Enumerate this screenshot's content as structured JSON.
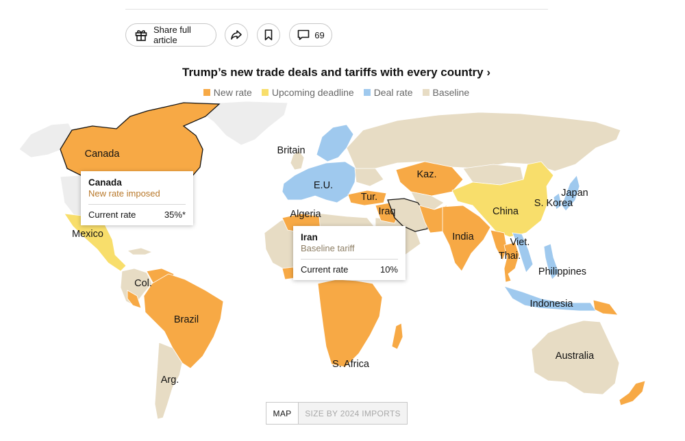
{
  "toolbar": {
    "share_label": "Share full article",
    "comment_count": "69"
  },
  "title": "Trump’s new trade deals and tariffs with every country ›",
  "legend": [
    {
      "label": "New rate",
      "color": "#f7a945"
    },
    {
      "label": "Upcoming deadline",
      "color": "#f8de6b"
    },
    {
      "label": "Deal rate",
      "color": "#9fc9ee"
    },
    {
      "label": "Baseline",
      "color": "#e7dcc4"
    }
  ],
  "colors": {
    "new_rate": "#f7a945",
    "upcoming": "#f8de6b",
    "deal": "#9fc9ee",
    "baseline": "#e7dcc4",
    "no_data": "#ededed",
    "new_rate_text": "#b8782a",
    "baseline_text": "#8c7d63"
  },
  "map_labels": {
    "canada": "Canada",
    "mexico": "Mexico",
    "colombia": "Col.",
    "brazil": "Brazil",
    "argentina": "Arg.",
    "britain": "Britain",
    "eu": "E.U.",
    "algeria": "Algeria",
    "turkey": "Tur.",
    "iraq": "Iraq",
    "kazakhstan": "Kaz.",
    "china": "China",
    "japan": "Japan",
    "south_korea": "S. Korea",
    "india": "India",
    "vietnam": "Viet.",
    "thailand": "Thai.",
    "philippines": "Philippines",
    "indonesia": "Indonesia",
    "south_africa": "S. Africa",
    "australia": "Australia"
  },
  "tooltips": {
    "canada": {
      "name": "Canada",
      "status": "New rate imposed",
      "rate_label": "Current rate",
      "rate_value": "35%*"
    },
    "iran": {
      "name": "Iran",
      "status": "Baseline tariff",
      "rate_label": "Current rate",
      "rate_value": "10%"
    }
  },
  "toggle": {
    "map_label": "MAP",
    "size_label": "SIZE BY 2024 IMPORTS"
  }
}
